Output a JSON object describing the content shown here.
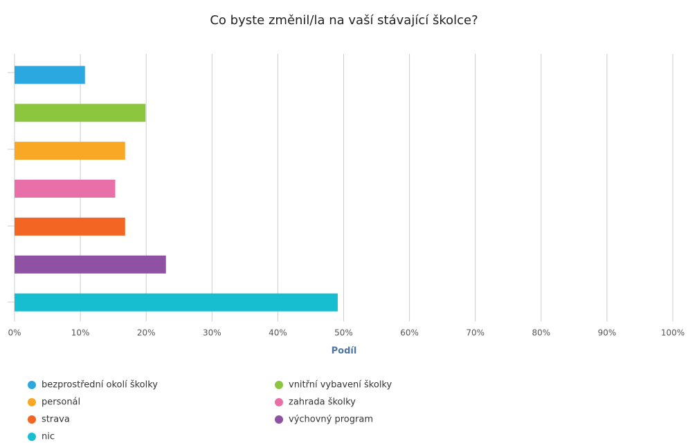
{
  "chart_data": {
    "type": "bar",
    "orientation": "horizontal",
    "title": "Co byste změnil/la na vaší stávající školce?",
    "xlabel": "Podíl",
    "series": [
      {
        "name": "bezprostřední okolí školky",
        "color": "#2ca8e0",
        "values": [
          10.7
        ]
      },
      {
        "name": "vnitřní vybavení školky",
        "color": "#8cc63f",
        "values": [
          19.9
        ]
      },
      {
        "name": "personál",
        "color": "#f9a825",
        "values": [
          16.8
        ]
      },
      {
        "name": "zahrada školky",
        "color": "#e96fa9",
        "values": [
          15.3
        ]
      },
      {
        "name": "strava",
        "color": "#f26522",
        "values": [
          16.8
        ]
      },
      {
        "name": "výchovný program",
        "color": "#8e51a3",
        "values": [
          23.0
        ]
      },
      {
        "name": "nic",
        "color": "#17becf",
        "values": [
          49.1
        ]
      }
    ],
    "xlim": [
      0,
      100
    ],
    "xticks": [
      {
        "value": 0,
        "label": "0%"
      },
      {
        "value": 10,
        "label": "10%"
      },
      {
        "value": 20,
        "label": "20%"
      },
      {
        "value": 30,
        "label": "30%"
      },
      {
        "value": 40,
        "label": "40%"
      },
      {
        "value": 50,
        "label": "50%"
      },
      {
        "value": 60,
        "label": "60%"
      },
      {
        "value": 70,
        "label": "70%"
      },
      {
        "value": 80,
        "label": "80%"
      },
      {
        "value": 90,
        "label": "90%"
      },
      {
        "value": 100,
        "label": "100%"
      }
    ],
    "grid": true,
    "legend": "bottom"
  }
}
